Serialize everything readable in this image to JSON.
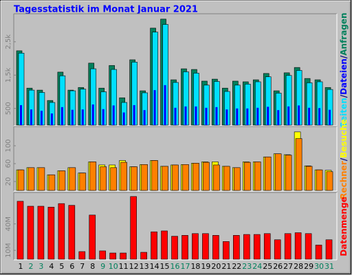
{
  "title": "Tagesstatistik im Monat Januar 2021",
  "chart_data": [
    {
      "type": "bar",
      "legend_separator": "/",
      "ylim": [
        0,
        3300
      ],
      "yticks": [
        500,
        {
          "value": 1500,
          "label": "1,5k"
        },
        {
          "value": 2500,
          "label": "2,5k"
        }
      ],
      "series": [
        {
          "name": "Anfragen",
          "color": "#00805c",
          "values": [
            2230,
            1110,
            1050,
            740,
            1590,
            1050,
            1130,
            1860,
            1110,
            1790,
            820,
            1960,
            1030,
            2910,
            3180,
            1360,
            1690,
            1670,
            1320,
            1380,
            1110,
            1320,
            1300,
            1360,
            1550,
            1030,
            1570,
            1730,
            1400,
            1360,
            1130
          ]
        },
        {
          "name": "Dateien",
          "color": "#0000ff",
          "values": [
            600,
            470,
            430,
            350,
            540,
            460,
            470,
            620,
            480,
            590,
            380,
            600,
            450,
            1050,
            1200,
            520,
            560,
            560,
            520,
            540,
            470,
            500,
            500,
            520,
            550,
            450,
            560,
            590,
            520,
            510,
            460
          ]
        },
        {
          "name": "Seiten",
          "color": "#00e0ff",
          "values": [
            2160,
            1050,
            980,
            680,
            1480,
            1030,
            1080,
            1690,
            1000,
            1670,
            680,
            1890,
            970,
            2790,
            3020,
            1280,
            1600,
            1560,
            1200,
            1310,
            1010,
            1200,
            1230,
            1300,
            1450,
            960,
            1490,
            1640,
            1270,
            1300,
            1070
          ]
        }
      ]
    },
    {
      "type": "bar",
      "legend_separator": "/",
      "ylim": [
        0,
        140
      ],
      "yticks": [
        20,
        60,
        100
      ],
      "series": [
        {
          "name": "Besuche",
          "color": "#ffff00",
          "values": [
            46,
            51,
            51,
            35,
            44,
            51,
            39,
            64,
            57,
            57,
            67,
            53,
            58,
            67,
            54,
            57,
            58,
            61,
            64,
            64,
            54,
            51,
            64,
            64,
            75,
            82,
            80,
            131,
            55,
            46,
            45
          ]
        },
        {
          "name": "Rechner",
          "color": "#ff8000",
          "values": [
            46,
            51,
            51,
            35,
            44,
            51,
            39,
            64,
            53,
            51,
            63,
            53,
            58,
            67,
            54,
            57,
            58,
            61,
            63,
            57,
            54,
            51,
            63,
            64,
            75,
            82,
            79,
            116,
            54,
            46,
            42
          ]
        }
      ]
    },
    {
      "type": "bar",
      "ylim": [
        0,
        74
      ],
      "yticks": [
        {
          "value": 10,
          "label": "10M"
        },
        {
          "value": 40,
          "label": "40M"
        }
      ],
      "categories": [
        "1",
        "2",
        "3",
        "4",
        "5",
        "6",
        "7",
        "8",
        "9",
        "10",
        "11",
        "12",
        "13",
        "14",
        "15",
        "16",
        "17",
        "18",
        "19",
        "20",
        "21",
        "22",
        "23",
        "24",
        "25",
        "26",
        "27",
        "28",
        "29",
        "30",
        "31"
      ],
      "category_colors": [
        "#000000",
        "#00805c",
        "#00805c",
        "#000000",
        "#000000",
        "#000000",
        "#000000",
        "#000000",
        "#00805c",
        "#00805c",
        "#000000",
        "#000000",
        "#000000",
        "#000000",
        "#000000",
        "#00805c",
        "#00805c",
        "#000000",
        "#000000",
        "#000000",
        "#000000",
        "#000000",
        "#00805c",
        "#00805c",
        "#000000",
        "#000000",
        "#000000",
        "#000000",
        "#000000",
        "#00805c",
        "#00805c"
      ],
      "series": [
        {
          "name": "Datenmenge",
          "color": "#ff0000",
          "values": [
            65.6,
            60,
            60,
            59,
            63,
            61,
            8.6,
            50,
            9.4,
            7,
            7,
            71,
            7.8,
            31,
            32,
            26,
            27,
            29,
            29,
            27,
            20,
            27,
            28,
            28,
            29,
            22,
            29,
            30,
            29,
            16,
            22
          ]
        }
      ]
    }
  ]
}
